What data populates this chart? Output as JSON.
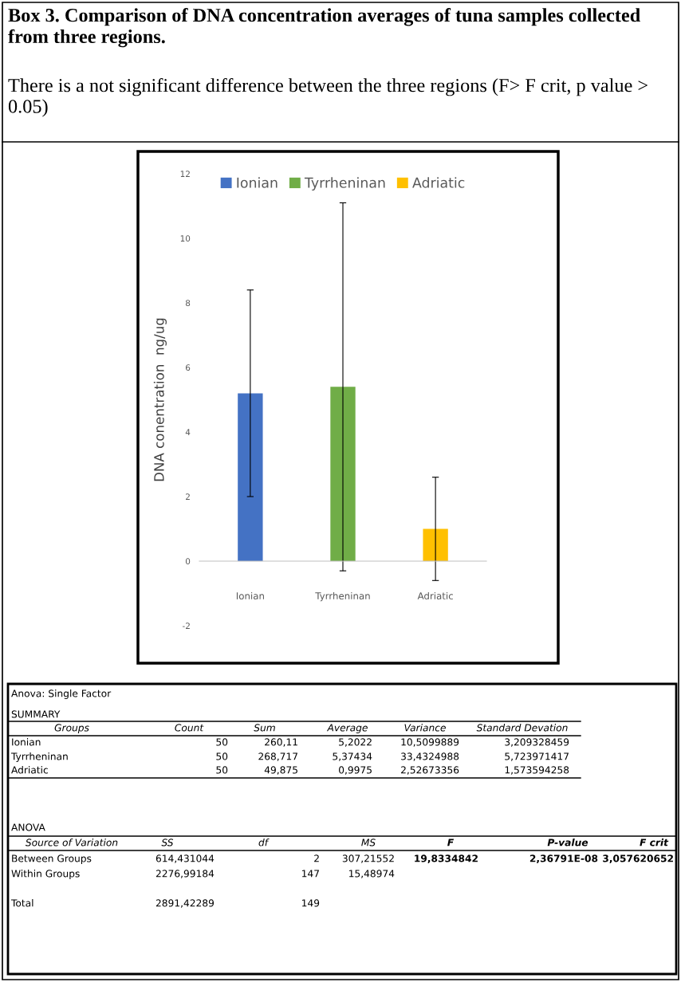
{
  "chart_data": {
    "type": "bar",
    "title": "Box 3. Comparison of DNA concentration averages of tuna samples collected from three regions.",
    "subtitle": "There is a not significant difference between the three regions (F> F crit, p value > 0.05)",
    "ylabel": "DNA conentration  ng/ug",
    "categories": [
      "Ionian",
      "Tyrrheninan",
      "Adriatic"
    ],
    "series": [
      {
        "name": "Ionian",
        "color": "#4472c4",
        "values": [
          5.2,
          null,
          null
        ],
        "errors": [
          3.2,
          null,
          null
        ]
      },
      {
        "name": "Tyrrheninan",
        "color": "#70ad47",
        "values": [
          null,
          5.4,
          null
        ],
        "errors": [
          null,
          5.7,
          null
        ]
      },
      {
        "name": "Adriatic",
        "color": "#ffc000",
        "values": [
          null,
          null,
          1.0
        ],
        "errors": [
          null,
          null,
          1.6
        ]
      }
    ],
    "ylim": [
      -2,
      12
    ],
    "yticks": [
      -2,
      0,
      2,
      4,
      6,
      8,
      10,
      12
    ],
    "legend": "top",
    "annotations": [
      "Anova: Single Factor",
      "SUMMARY",
      "Groups  Count  Sum  Average  Variance  Standard Devation",
      "Ionian  50  260,11  5,2022  10,5099889  3,209328459",
      "Tyrrheninan  50  268,717  5,37434  33,4324988  5,723971417",
      "Adriatic  50  49,875  0,9975  2,52673356  1,573594258",
      "ANOVA",
      "Source of Variation  SS  df  MS  F  P-value  F crit",
      "Between Groups  614,431044  2  307,21552  19,8334842  2,36791E-08  3,057620652",
      "Within Groups  2276,99184  147  15,48974",
      "Total  2891,42289  149"
    ]
  }
}
